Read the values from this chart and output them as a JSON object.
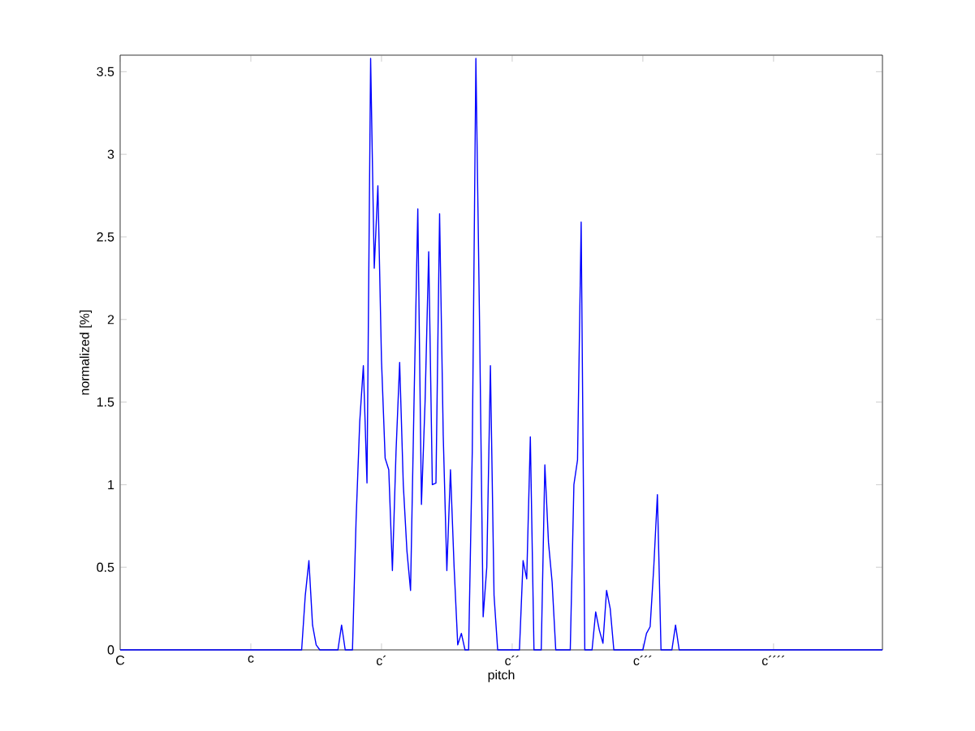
{
  "chart_data": {
    "type": "line",
    "xlabel": "pitch",
    "ylabel": "normalized [%]",
    "color": "#0000ff",
    "ylim": [
      0,
      3.6
    ],
    "yticks": [
      0,
      0.5,
      1,
      1.5,
      2,
      2.5,
      3,
      3.5
    ],
    "categories": [
      "C",
      null,
      null,
      null,
      null,
      null,
      null,
      null,
      null,
      null,
      null,
      null,
      null,
      null,
      null,
      null,
      null,
      null,
      null,
      null,
      null,
      null,
      null,
      null,
      null,
      null,
      null,
      null,
      null,
      null,
      null,
      null,
      null,
      null,
      null,
      null,
      "c",
      null,
      null,
      null,
      null,
      null,
      null,
      null,
      null,
      null,
      null,
      null,
      null,
      null,
      null,
      null,
      null,
      null,
      null,
      null,
      null,
      null,
      null,
      null,
      null,
      null,
      null,
      null,
      null,
      null,
      null,
      null,
      null,
      null,
      null,
      null,
      "c´",
      null,
      null,
      null,
      null,
      null,
      null,
      null,
      null,
      null,
      null,
      null,
      null,
      null,
      null,
      null,
      null,
      null,
      null,
      null,
      null,
      null,
      null,
      null,
      null,
      null,
      null,
      null,
      null,
      null,
      null,
      null,
      null,
      null,
      null,
      null,
      "c´´",
      null,
      null,
      null,
      null,
      null,
      null,
      null,
      null,
      null,
      null,
      null,
      null,
      null,
      null,
      null,
      null,
      null,
      null,
      null,
      null,
      null,
      null,
      null,
      null,
      null,
      null,
      null,
      null,
      null,
      null,
      null,
      null,
      null,
      null,
      null,
      "c´´´",
      null,
      null,
      null,
      null,
      null,
      null,
      null,
      null,
      null,
      null,
      null,
      null,
      null,
      null,
      null,
      null,
      null,
      null,
      null,
      null,
      null,
      null,
      null,
      null,
      null,
      null,
      null,
      null,
      null,
      null,
      null,
      null,
      null,
      null,
      null,
      "c´´´´",
      null,
      null,
      null,
      null,
      null,
      null,
      null,
      null,
      null,
      null,
      null,
      null,
      null,
      null,
      null,
      null,
      null,
      null,
      null,
      null,
      null,
      null,
      null,
      null,
      null,
      null,
      null,
      null,
      null,
      null
    ],
    "values": [
      0,
      0,
      0,
      0,
      0,
      0,
      0,
      0,
      0,
      0,
      0,
      0,
      0,
      0,
      0,
      0,
      0,
      0,
      0,
      0,
      0,
      0,
      0,
      0,
      0,
      0,
      0,
      0,
      0,
      0,
      0,
      0,
      0,
      0,
      0,
      0,
      0,
      0,
      0,
      0,
      0,
      0,
      0,
      0,
      0,
      0,
      0,
      0,
      0,
      0,
      0,
      0.33,
      0.54,
      0.15,
      0.03,
      0,
      0,
      0,
      0,
      0,
      0,
      0.15,
      0,
      0,
      0,
      0.79,
      1.38,
      1.72,
      1.01,
      3.58,
      2.31,
      2.81,
      1.75,
      1.16,
      1.09,
      0.48,
      1.2,
      1.74,
      1.0,
      0.6,
      0.36,
      1.55,
      2.67,
      0.88,
      1.5,
      2.41,
      1.0,
      1.01,
      2.64,
      1.3,
      0.48,
      1.09,
      0.5,
      0.03,
      0.1,
      0,
      0,
      1.2,
      3.58,
      1.99,
      0.2,
      0.5,
      1.72,
      0.33,
      0,
      0,
      0,
      0,
      0,
      0,
      0,
      0.54,
      0.43,
      1.29,
      0,
      0,
      0,
      1.12,
      0.65,
      0.41,
      0,
      0,
      0,
      0,
      0,
      1.0,
      1.15,
      2.59,
      0,
      0,
      0,
      0.23,
      0.12,
      0.04,
      0.36,
      0.25,
      0,
      0,
      0,
      0,
      0,
      0,
      0,
      0,
      0,
      0.1,
      0.14,
      0.5,
      0.94,
      0,
      0,
      0,
      0,
      0.15,
      0,
      0,
      0,
      0,
      0,
      0,
      0,
      0,
      0,
      0,
      0,
      0,
      0,
      0,
      0,
      0,
      0,
      0,
      0,
      0,
      0,
      0,
      0,
      0,
      0,
      0,
      0,
      0,
      0,
      0,
      0,
      0,
      0,
      0,
      0,
      0,
      0,
      0,
      0,
      0,
      0,
      0,
      0,
      0,
      0,
      0,
      0,
      0,
      0,
      0,
      0,
      0,
      0,
      0,
      0,
      0,
      0
    ]
  }
}
